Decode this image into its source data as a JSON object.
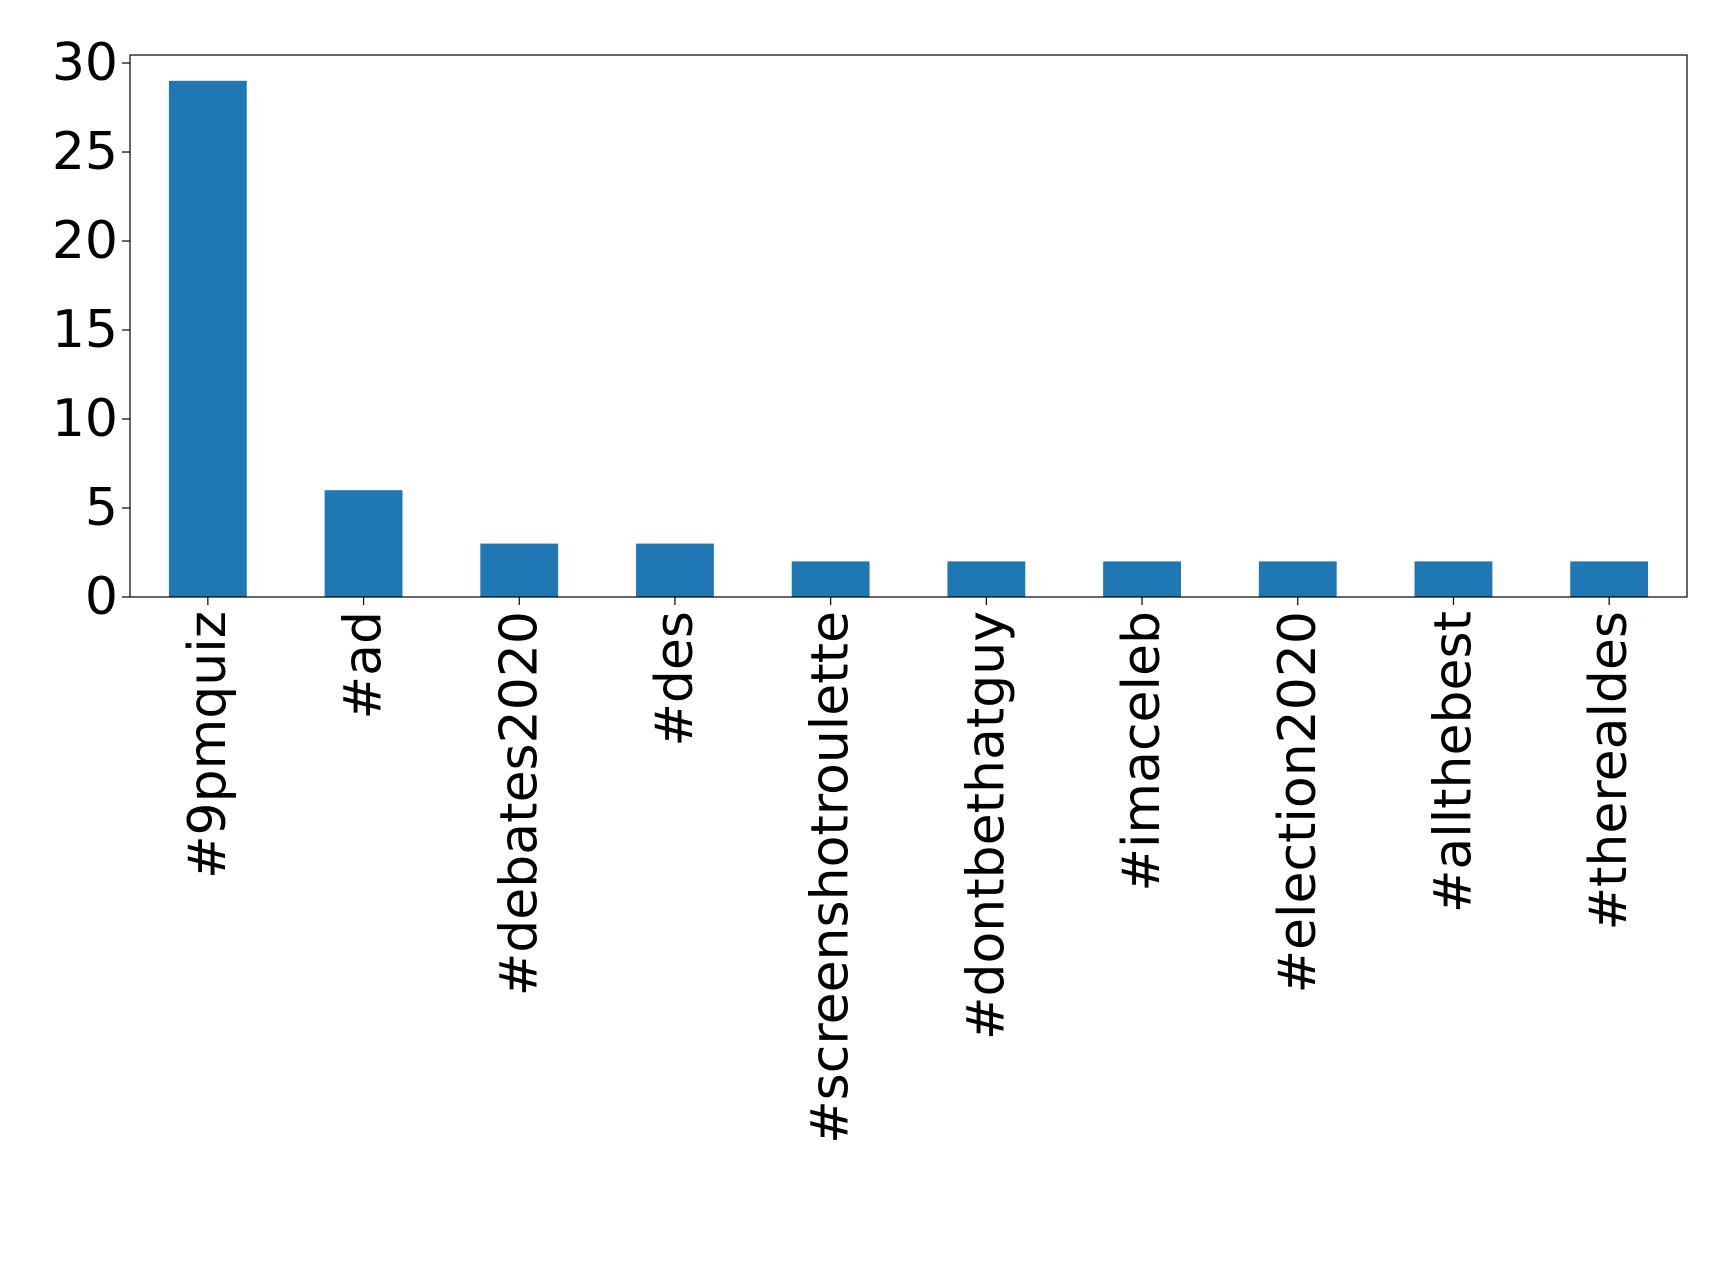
{
  "chart_data": {
    "type": "bar",
    "categories": [
      "#9pmquiz",
      "#ad",
      "#debates2020",
      "#des",
      "#screenshotroulette",
      "#dontbethatguy",
      "#imaceleb",
      "#election2020",
      "#allthebest",
      "#therealdes"
    ],
    "values": [
      29,
      6,
      3,
      3,
      2,
      2,
      2,
      2,
      2,
      2
    ],
    "color": "#1f77b4",
    "ylim": [
      0,
      30.45
    ],
    "yticks": [
      0,
      5,
      10,
      15,
      20,
      25,
      30
    ],
    "grid": false
  }
}
